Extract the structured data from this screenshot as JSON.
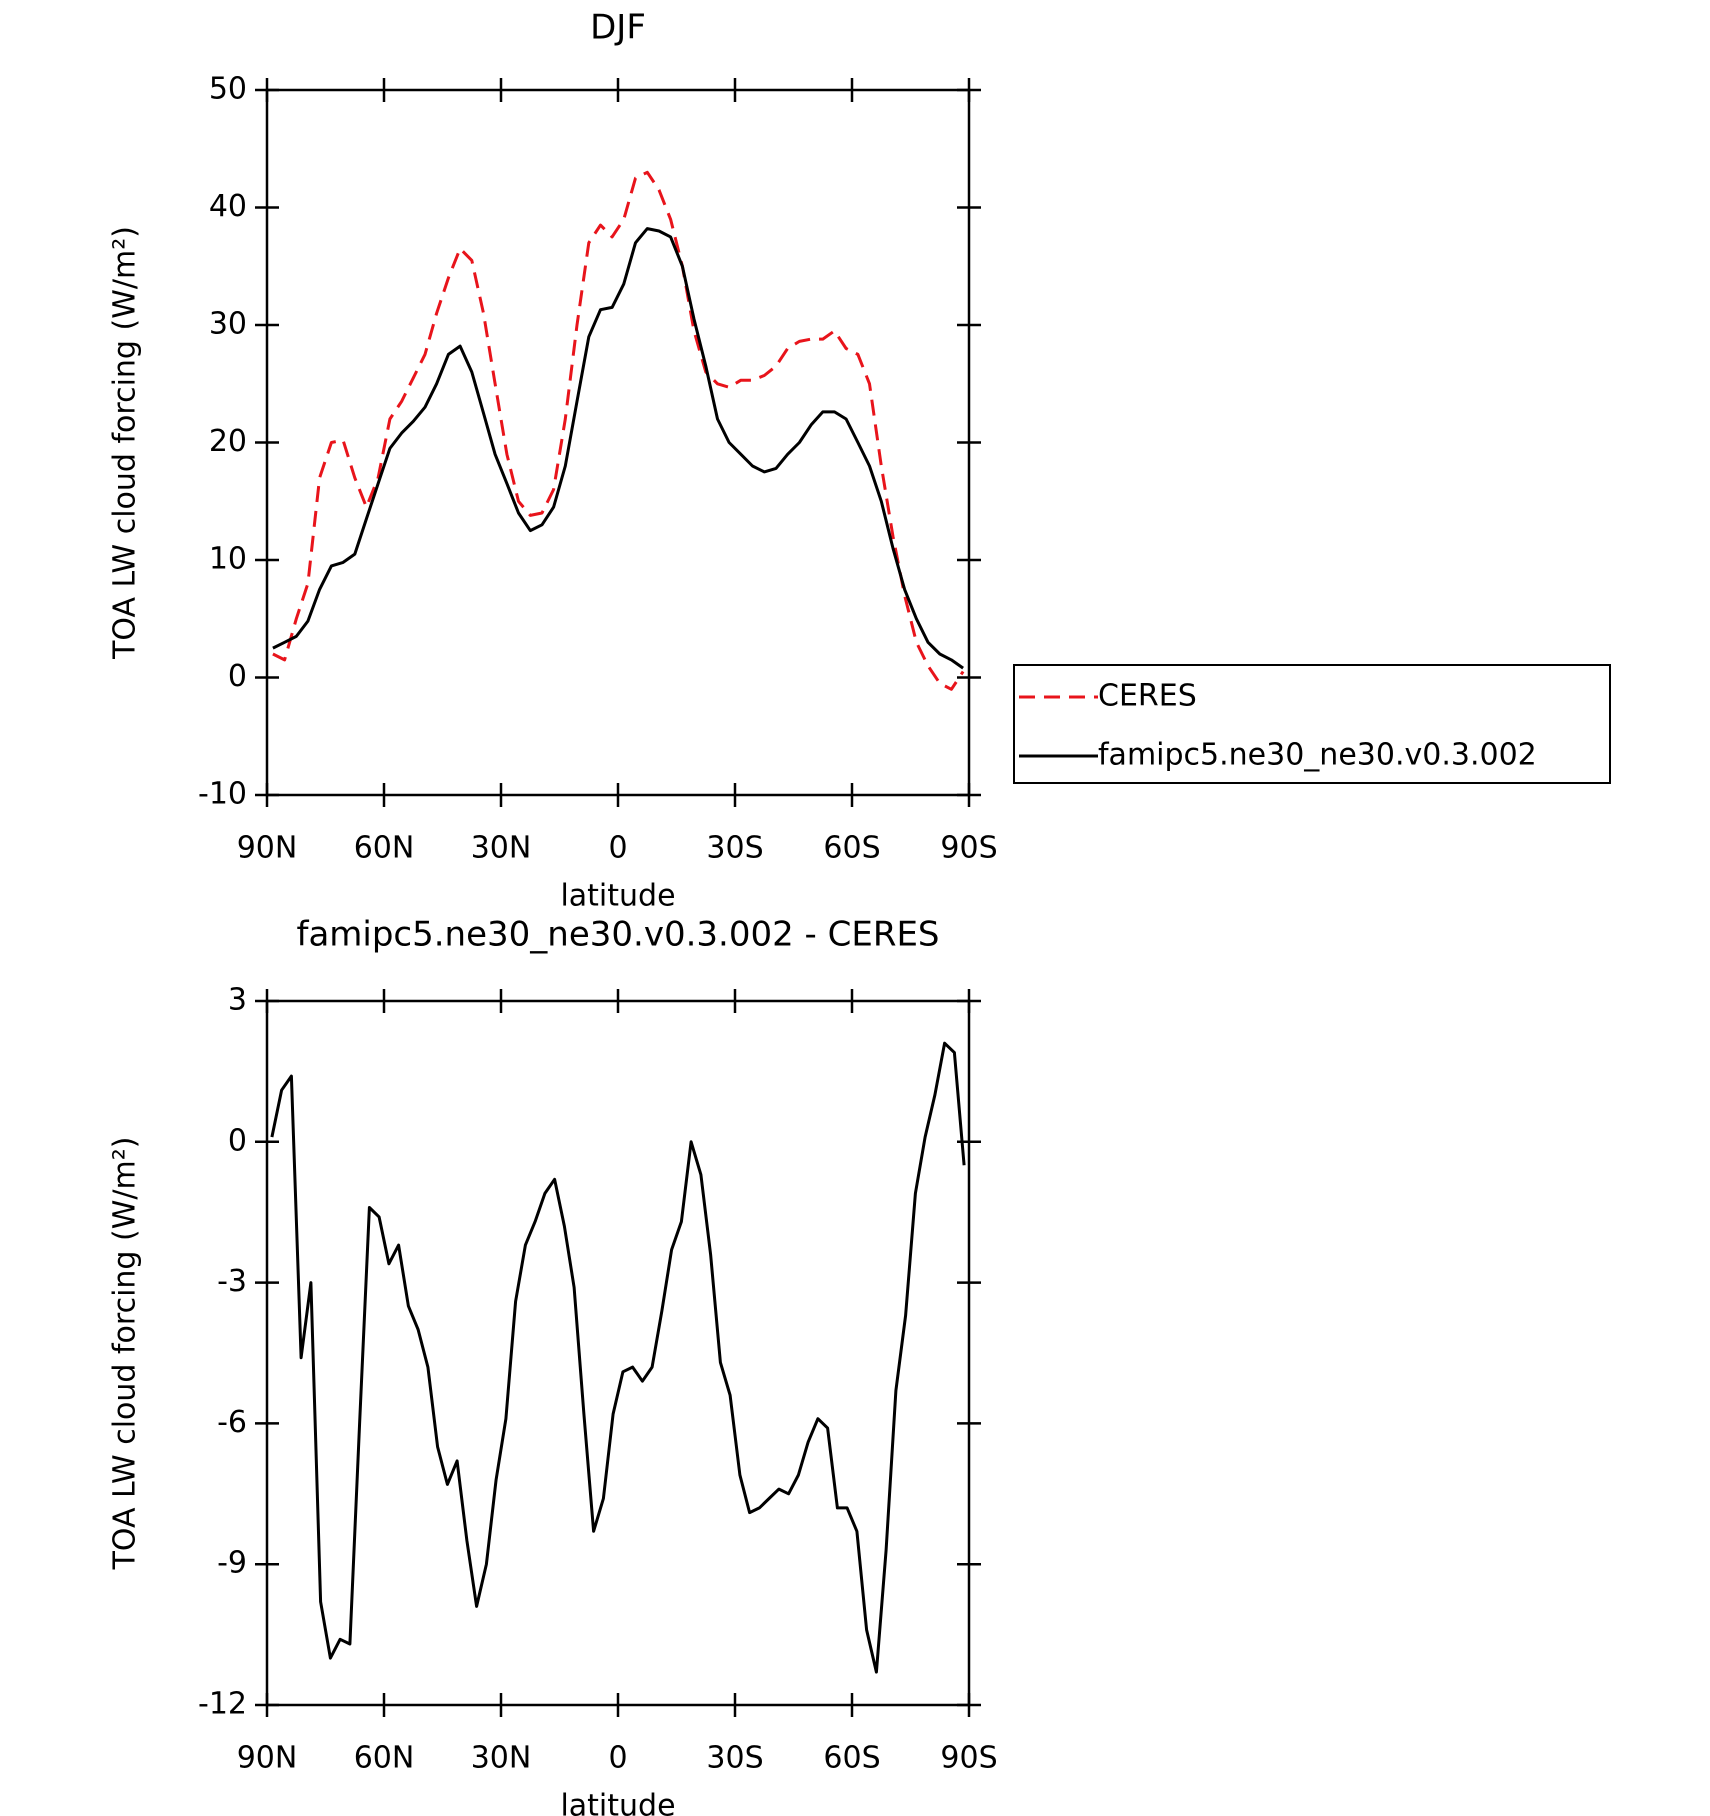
{
  "chart_data": [
    {
      "type": "line",
      "title": "DJF",
      "xlabel": "latitude",
      "ylabel": "TOA LW cloud forcing (W/m²)",
      "xlim": [
        90,
        -90
      ],
      "xticks": [
        {
          "value": 90,
          "label": "90N"
        },
        {
          "value": 60,
          "label": "60N"
        },
        {
          "value": 30,
          "label": "30N"
        },
        0,
        {
          "value": -30,
          "label": "30S"
        },
        {
          "value": -60,
          "label": "60S"
        },
        {
          "value": -90,
          "label": "90S"
        }
      ],
      "ylim": [
        -10,
        50
      ],
      "yticks": [
        -10,
        0,
        10,
        20,
        30,
        40,
        50
      ],
      "legend": "right",
      "x": [
        88.5,
        85.5,
        82.5,
        79.5,
        76.5,
        73.5,
        70.5,
        67.5,
        64.5,
        61.5,
        58.5,
        55.5,
        52.5,
        49.5,
        46.5,
        43.5,
        40.5,
        37.5,
        34.5,
        31.5,
        28.5,
        25.5,
        22.5,
        19.5,
        16.5,
        13.5,
        10.5,
        7.5,
        4.5,
        1.5,
        -1.5,
        -4.5,
        -7.5,
        -10.5,
        -13.5,
        -16.5,
        -19.5,
        -22.5,
        -25.5,
        -28.5,
        -31.5,
        -34.5,
        -37.5,
        -40.5,
        -43.5,
        -46.5,
        -49.5,
        -52.5,
        -55.5,
        -58.5,
        -61.5,
        -64.5,
        -67.5,
        -70.5,
        -73.5,
        -76.5,
        -79.5,
        -82.5,
        -85.5,
        -88.5
      ],
      "series": [
        {
          "name": "CERES",
          "color": "#e8141b",
          "dash": true,
          "values": [
            2,
            1.5,
            5,
            8,
            17,
            20,
            20.2,
            17,
            14.5,
            17,
            22,
            23.5,
            25.5,
            27.5,
            31,
            34,
            36.5,
            35.5,
            31,
            25,
            19,
            15,
            13.8,
            14,
            16,
            22,
            30,
            37,
            38.5,
            37.5,
            39,
            42.5,
            43,
            41.5,
            39,
            35,
            29.5,
            26,
            25,
            24.7,
            25.3,
            25.3,
            25.7,
            26.5,
            28,
            28.6,
            28.8,
            28.8,
            29.5,
            28,
            27.5,
            25,
            18,
            12,
            7,
            3,
            1,
            -0.5,
            -1,
            0.5
          ]
        },
        {
          "name": "famipc5.ne30_ne30.v0.3.002",
          "color": "#000000",
          "dash": false,
          "values": [
            2.5,
            3,
            3.5,
            4.8,
            7.5,
            9.5,
            9.8,
            10.5,
            13.5,
            16.5,
            19.5,
            20.8,
            21.8,
            23,
            25,
            27.5,
            28.2,
            26,
            22.5,
            19,
            16.5,
            14,
            12.5,
            13,
            14.5,
            18,
            23.5,
            29,
            31.3,
            31.5,
            33.5,
            37,
            38.2,
            38,
            37.5,
            35,
            30.5,
            26.5,
            22,
            20,
            19,
            18,
            17.5,
            17.8,
            19,
            20,
            21.5,
            22.6,
            22.6,
            22,
            20,
            18,
            15,
            11,
            7.5,
            5,
            3,
            2,
            1.5,
            0.8
          ]
        }
      ]
    },
    {
      "type": "line",
      "title": "famipc5.ne30_ne30.v0.3.002 - CERES",
      "xlabel": "latitude",
      "ylabel": "TOA LW cloud forcing (W/m²)",
      "xlim": [
        90,
        -90
      ],
      "xticks": [
        {
          "value": 90,
          "label": "90N"
        },
        {
          "value": 60,
          "label": "60N"
        },
        {
          "value": 30,
          "label": "30N"
        },
        0,
        {
          "value": -30,
          "label": "30S"
        },
        {
          "value": -60,
          "label": "60S"
        },
        {
          "value": -90,
          "label": "90S"
        }
      ],
      "ylim": [
        -12,
        3
      ],
      "yticks": [
        -12,
        -9,
        -6,
        -3,
        0,
        3
      ],
      "x": [
        88.75,
        86.25,
        83.75,
        81.25,
        78.75,
        76.25,
        73.75,
        71.25,
        68.75,
        66.25,
        63.75,
        61.25,
        58.75,
        56.25,
        53.75,
        51.25,
        48.75,
        46.25,
        43.75,
        41.25,
        38.75,
        36.25,
        33.75,
        31.25,
        28.75,
        26.25,
        23.75,
        21.25,
        18.75,
        16.25,
        13.75,
        11.25,
        8.75,
        6.25,
        3.75,
        1.25,
        -1.25,
        -3.75,
        -6.25,
        -8.75,
        -11.25,
        -13.75,
        -16.25,
        -18.75,
        -21.25,
        -23.75,
        -26.25,
        -28.75,
        -31.25,
        -33.75,
        -36.25,
        -38.75,
        -41.25,
        -43.75,
        -46.25,
        -48.75,
        -51.25,
        -53.75,
        -56.25,
        -58.75,
        -61.25,
        -63.75,
        -66.25,
        -68.75,
        -71.25,
        -73.75,
        -76.25,
        -78.75,
        -81.25,
        -83.75,
        -86.25,
        -88.75
      ],
      "series": [
        {
          "color": "#000000",
          "dash": false,
          "values": [
            0.1,
            1.1,
            1.4,
            -4.6,
            -3,
            -9.8,
            -11,
            -10.6,
            -10.7,
            -6,
            -1.4,
            -1.6,
            -2.6,
            -2.2,
            -3.5,
            -4,
            -4.8,
            -6.5,
            -7.3,
            -6.8,
            -8.5,
            -9.9,
            -9,
            -7.2,
            -5.9,
            -3.4,
            -2.2,
            -1.7,
            -1.1,
            -0.8,
            -1.8,
            -3.1,
            -5.8,
            -8.3,
            -7.6,
            -5.8,
            -4.9,
            -4.8,
            -5.1,
            -4.8,
            -3.6,
            -2.3,
            -1.7,
            0,
            -0.7,
            -2.4,
            -4.7,
            -5.4,
            -7.1,
            -7.9,
            -7.8,
            -7.6,
            -7.4,
            -7.5,
            -7.1,
            -6.4,
            -5.9,
            -6.1,
            -7.8,
            -7.8,
            -8.3,
            -10.4,
            -11.3,
            -8.7,
            -5.3,
            -3.7,
            -1.1,
            0.1,
            1,
            2.1,
            1.9,
            -0.5
          ]
        }
      ]
    }
  ]
}
